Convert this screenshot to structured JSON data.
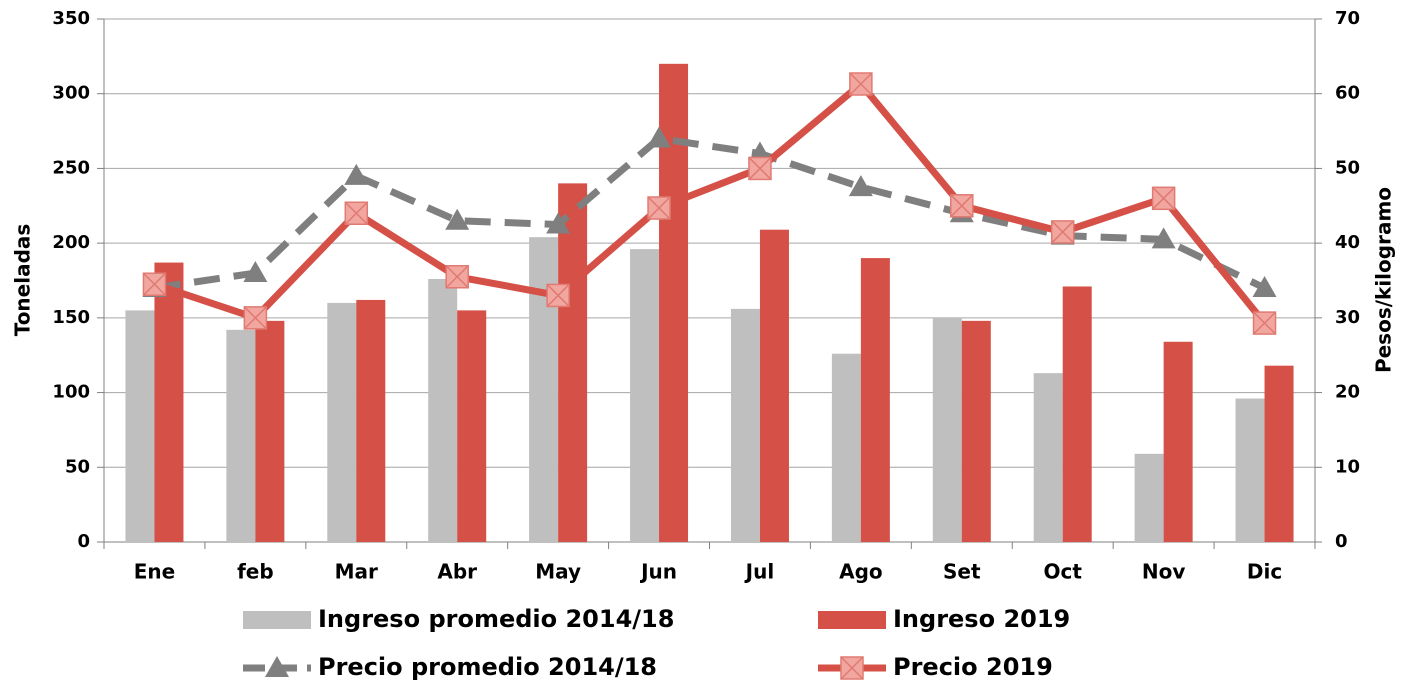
{
  "chart_data": {
    "type": "bar",
    "categories": [
      "Ene",
      "feb",
      "Mar",
      "Abr",
      "May",
      "Jun",
      "Jul",
      "Ago",
      "Set",
      "Oct",
      "Nov",
      "Dic"
    ],
    "y_label": "Toneladas",
    "y2_label": "Pesos/kilogramo",
    "ylim": [
      0,
      350
    ],
    "yticks": [
      0,
      50,
      100,
      150,
      200,
      250,
      300,
      350
    ],
    "y2lim": [
      0,
      70
    ],
    "y2ticks": [
      0,
      10,
      20,
      30,
      40,
      50,
      60,
      70
    ],
    "grid": true,
    "series": [
      {
        "name": "Ingreso promedio 2014/18",
        "type": "bar",
        "color": "#bfbfbf",
        "values": [
          155,
          142,
          160,
          176,
          204,
          196,
          156,
          126,
          150,
          113,
          59,
          96
        ]
      },
      {
        "name": "Ingreso 2019",
        "type": "bar",
        "color": "#d55046",
        "values": [
          187,
          148,
          162,
          155,
          240,
          320,
          209,
          190,
          148,
          171,
          134,
          118
        ]
      },
      {
        "name": "Precio promedio 2014/18",
        "type": "line",
        "axis": "y2",
        "color": "#7f7f7f",
        "dash": true,
        "marker": "triangle",
        "values": [
          34,
          36,
          49,
          43,
          42.5,
          54,
          52,
          47.5,
          44,
          41,
          40.5,
          34
        ]
      },
      {
        "name": "Precio 2019",
        "type": "line",
        "axis": "y2",
        "color": "#d55046",
        "dash": false,
        "marker": "x",
        "values": [
          34.5,
          30,
          44,
          35.5,
          33,
          44.7,
          50,
          61.3,
          45,
          41.5,
          46,
          29.3
        ]
      }
    ]
  }
}
